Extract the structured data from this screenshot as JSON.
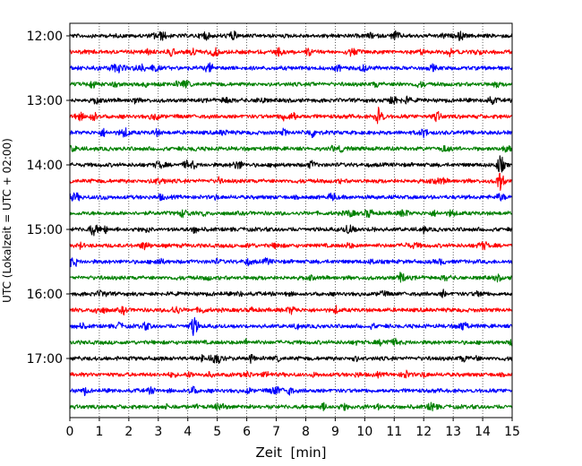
{
  "chart_data": {
    "type": "line",
    "title": "",
    "xlabel": "Zeit  [min]",
    "ylabel": "UTC (Lokalzeit = UTC + 02:00)",
    "xlim": [
      0,
      15
    ],
    "x_ticks": [
      "0",
      "1",
      "2",
      "3",
      "4",
      "5",
      "6",
      "7",
      "8",
      "9",
      "10",
      "11",
      "12",
      "13",
      "14",
      "15"
    ],
    "y_ticks": [
      "12:00",
      "13:00",
      "14:00",
      "15:00",
      "16:00",
      "17:00"
    ],
    "grid": {
      "vertical_dotted": true,
      "horizontal": false
    },
    "trace_colors": [
      "#000000",
      "#ff0000",
      "#0000ff",
      "#008000"
    ],
    "trace_interval_min": 15,
    "trace_start_times": [
      "12:00",
      "12:15",
      "12:30",
      "12:45",
      "13:00",
      "13:15",
      "13:30",
      "13:45",
      "14:00",
      "14:15",
      "14:30",
      "14:45",
      "15:00",
      "15:15",
      "15:30",
      "15:45",
      "16:00",
      "16:15",
      "16:30",
      "16:45",
      "17:00",
      "17:15",
      "17:30",
      "17:45"
    ],
    "notable_events": [
      {
        "trace": "13:15",
        "x_min": 10.5,
        "note": "strong burst"
      },
      {
        "trace": "14:00",
        "x_min": 14.6,
        "note": "spike"
      },
      {
        "trace": "14:15",
        "x_min": 14.6,
        "note": "spike"
      }
    ]
  }
}
